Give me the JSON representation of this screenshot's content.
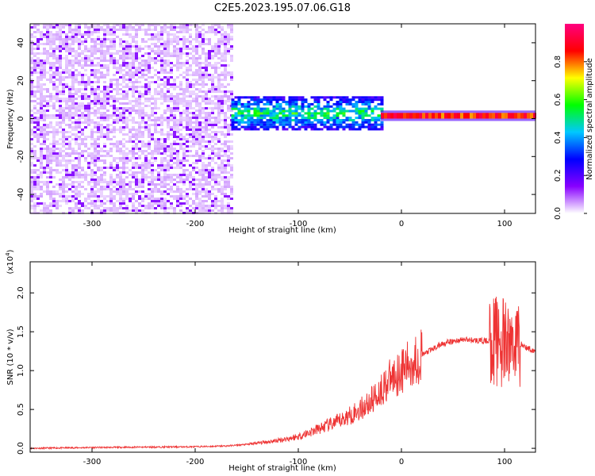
{
  "title": "C2E5.2023.195.07.06.G18",
  "chart_data": [
    {
      "type": "heatmap",
      "xlabel": "Height of straight line (km)",
      "ylabel": "Frequency (Hz)",
      "xlim": [
        -360,
        130
      ],
      "ylim": [
        -50,
        50
      ],
      "xticks": [
        -300,
        -200,
        -100,
        0,
        100
      ],
      "yticks": [
        -40,
        -20,
        0,
        20,
        40
      ],
      "colorbar": {
        "label": "Normalized spectral amplitude",
        "range": [
          0.0,
          1.0
        ],
        "ticks": [
          "0.0",
          "0.2",
          "0.4",
          "0.6",
          "0.8"
        ],
        "colormap": [
          "#ffffff",
          "#8800ff",
          "#0000ff",
          "#00c8ff",
          "#00ff00",
          "#ffff00",
          "#ff0000",
          "#ff0080"
        ]
      },
      "regions": [
        {
          "x_range": [
            -360,
            -165
          ],
          "freq_range": [
            -50,
            50
          ],
          "amplitude": 0.15
        },
        {
          "x_range": [
            -165,
            -20
          ],
          "freq_range": [
            -5,
            12
          ],
          "amplitude": 0.45
        },
        {
          "x_range": [
            -20,
            130
          ],
          "freq_range": [
            0,
            3
          ],
          "amplitude": 0.9
        }
      ]
    },
    {
      "type": "line",
      "xlabel": "Height of straight line (km)",
      "ylabel": "SNR (10 * v/v)",
      "y_multiplier": "(x10",
      "y_multiplier_exp": "4",
      "y_multiplier_close": ")",
      "xlim": [
        -360,
        130
      ],
      "ylim": [
        -0.05,
        2.4
      ],
      "xticks": [
        -300,
        -200,
        -100,
        0,
        100
      ],
      "yticks": [
        "0.0",
        "0.5",
        "1.0",
        "1.5",
        "2.0"
      ],
      "series": [
        {
          "color": "#ee3333",
          "x": [
            -360,
            -300,
            -200,
            -170,
            -150,
            -120,
            -100,
            -80,
            -60,
            -40,
            -30,
            -20,
            -10,
            0,
            20,
            40,
            60,
            80,
            95,
            100,
            105,
            110,
            115,
            120,
            130
          ],
          "y": [
            0.0,
            0.01,
            0.02,
            0.03,
            0.05,
            0.1,
            0.15,
            0.25,
            0.35,
            0.5,
            0.6,
            0.75,
            0.9,
            1.0,
            1.2,
            1.35,
            1.4,
            1.38,
            1.4,
            1.3,
            1.35,
            1.4,
            1.35,
            1.3,
            1.25
          ]
        }
      ]
    }
  ]
}
